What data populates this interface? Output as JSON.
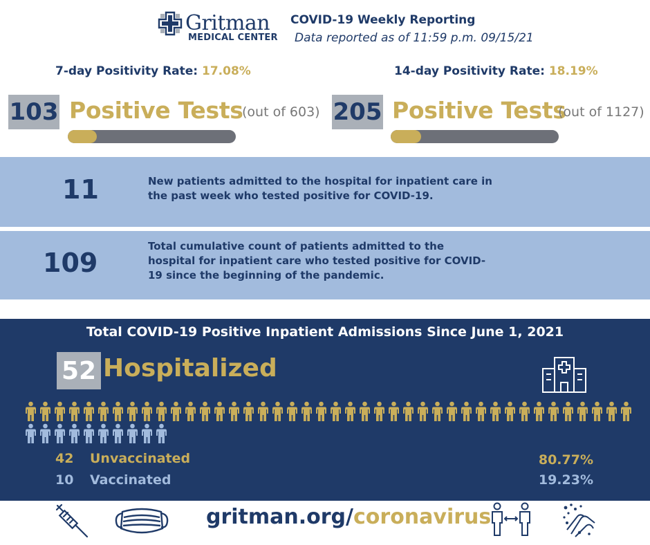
{
  "header": {
    "logo_name": "Gritman",
    "logo_sub": "MEDICAL CENTER",
    "title": "COVID-19 Weekly Reporting",
    "subtitle": "Data reported as of 11:59 p.m. 09/15/21"
  },
  "positivity": {
    "seven_day": {
      "label": "7-day Positivity Rate:",
      "rate": "17.08%",
      "count": "103",
      "tests_label": "Positive Tests",
      "out_of": "(out of 603)",
      "fraction": 0.1708
    },
    "fourteen_day": {
      "label": "14-day Positivity Rate:",
      "rate": "18.19%",
      "count": "205",
      "tests_label": "Positive Tests",
      "out_of": "(out of 1127)",
      "fraction": 0.1819
    }
  },
  "admissions": {
    "weekly": {
      "count": "11",
      "description": "New patients admitted to the hospital for inpatient care in the past week who tested positive for COVID-19."
    },
    "cumulative": {
      "count": "109",
      "description": "Total cumulative count of patients admitted to the hospital for inpatient care who tested positive for COVID-19 since the beginning of the pandemic."
    }
  },
  "since_june": {
    "title": "Total COVID-19 Positive Inpatient Admissions Since June 1, 2021",
    "hospitalized_count": "52",
    "hospitalized_label": "Hospitalized",
    "unvaccinated": {
      "count": "42",
      "label": "Unvaccinated",
      "percent": "80.77%",
      "n": 42
    },
    "vaccinated": {
      "count": "10",
      "label": "Vaccinated",
      "percent": "19.23%",
      "n": 10
    }
  },
  "colors": {
    "navy": "#1f3a68",
    "gold": "#c9ae5a",
    "light_blue": "#a2bbdd",
    "gray": "#aab0b8",
    "bar_track": "#6d7078"
  },
  "icons": {
    "logo": "hospital-cross-icon",
    "hospital": "hospital-building-icon",
    "person": "person-icon",
    "footer": [
      "syringe-icon",
      "face-mask-icon",
      "social-distance-icon",
      "hand-washing-icon"
    ]
  },
  "footer": {
    "url_main": "gritman.org/",
    "url_accent": "coronavirus"
  }
}
